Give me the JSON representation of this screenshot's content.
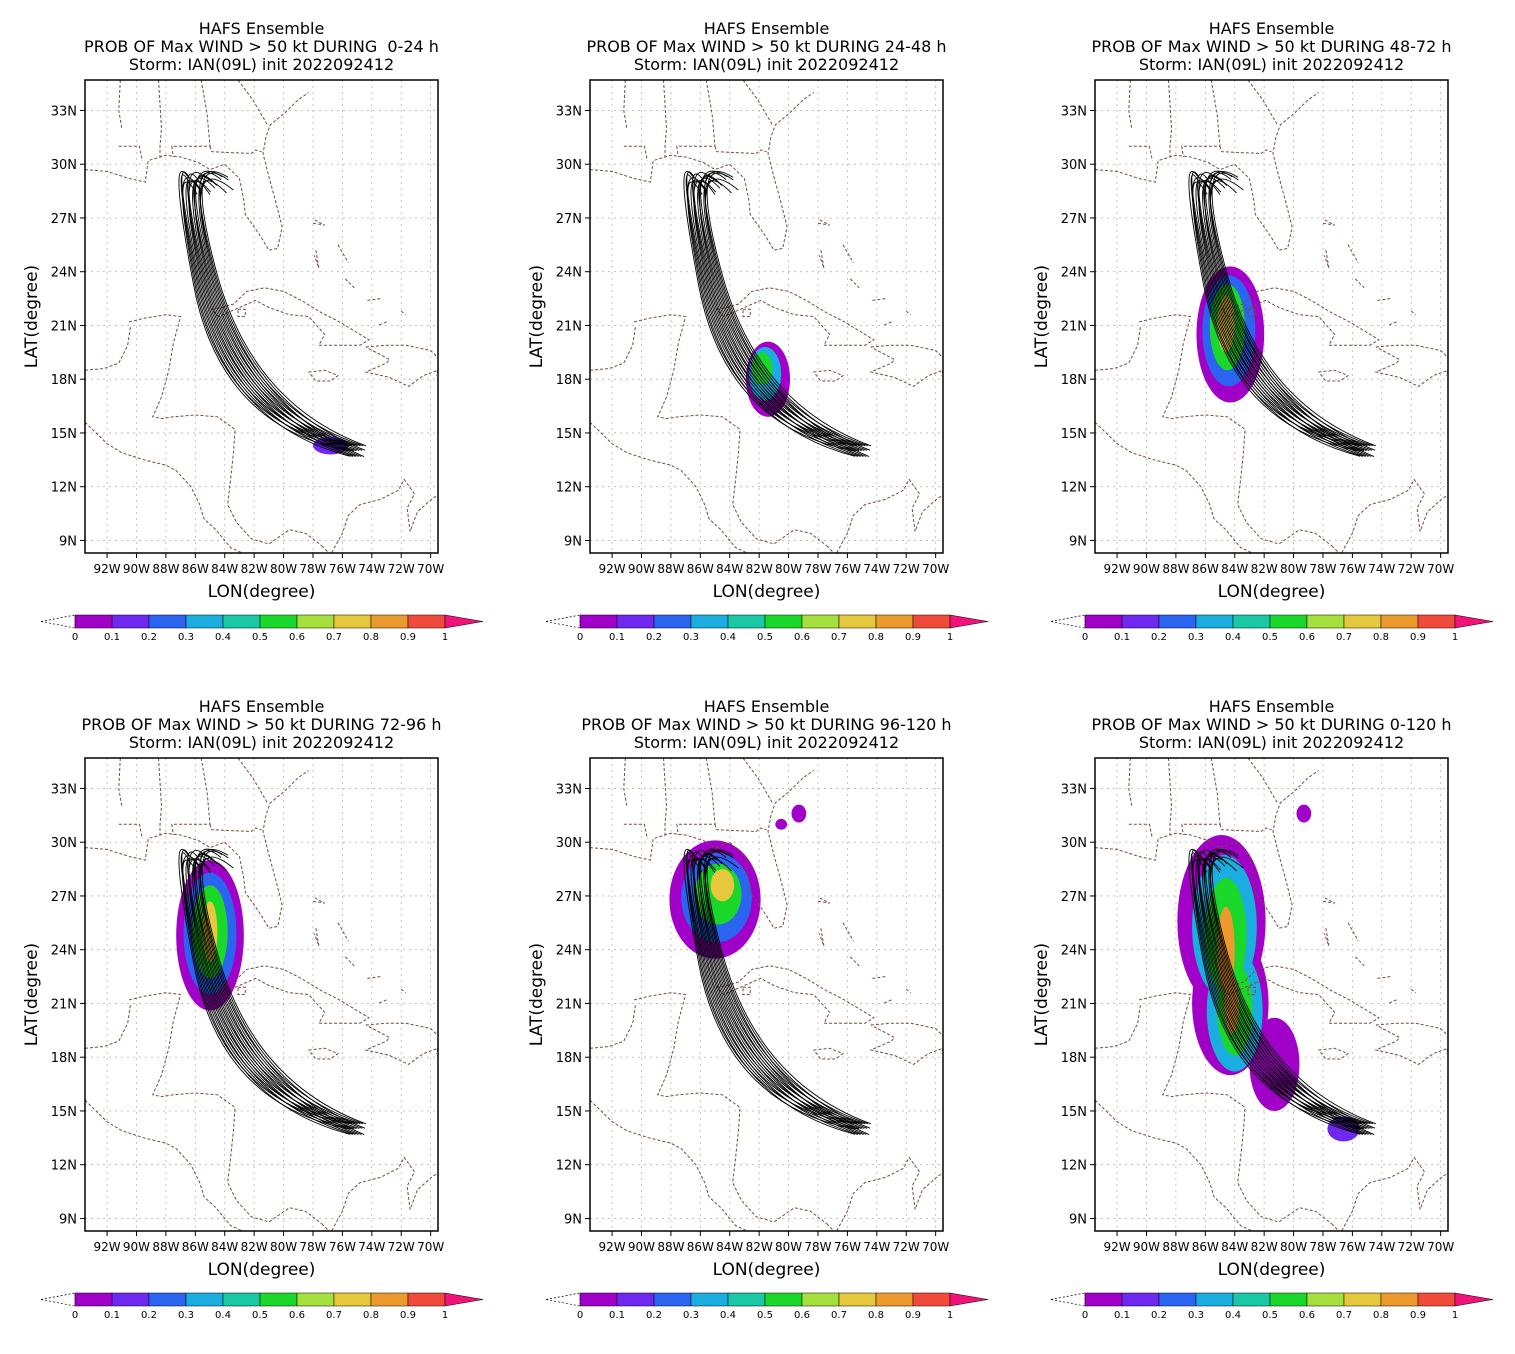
{
  "figure": {
    "panels": [
      {
        "title": "HAFS Ensemble",
        "subtitle": "PROB OF Max WIND > 50 kt DURING  0-24 h",
        "storm": "Storm: IAN(09L) init 2022092412",
        "blobs": [
          {
            "lon": -76.8,
            "lat": 14.3,
            "rlon": 1.2,
            "rlat": 0.5,
            "p": 0.12
          }
        ]
      },
      {
        "title": "HAFS Ensemble",
        "subtitle": "PROB OF Max WIND > 50 kt DURING 24-48 h",
        "storm": "Storm: IAN(09L) init 2022092412",
        "blobs": [
          {
            "lon": -81.4,
            "lat": 18.0,
            "rlon": 1.5,
            "rlat": 2.1,
            "p": 0.08
          },
          {
            "lon": -81.6,
            "lat": 18.3,
            "rlon": 1.1,
            "rlat": 1.5,
            "p": 0.3
          },
          {
            "lon": -81.8,
            "lat": 18.6,
            "rlon": 0.7,
            "rlat": 0.9,
            "p": 0.52
          }
        ]
      },
      {
        "title": "HAFS Ensemble",
        "subtitle": "PROB OF Max WIND > 50 kt DURING 48-72 h",
        "storm": "Storm: IAN(09L) init 2022092412",
        "blobs": [
          {
            "lon": -84.3,
            "lat": 20.5,
            "rlon": 2.3,
            "rlat": 3.8,
            "p": 0.08
          },
          {
            "lon": -84.4,
            "lat": 20.7,
            "rlon": 1.8,
            "rlat": 3.1,
            "p": 0.28
          },
          {
            "lon": -84.5,
            "lat": 20.9,
            "rlon": 1.2,
            "rlat": 2.4,
            "p": 0.5
          },
          {
            "lon": -84.6,
            "lat": 21.1,
            "rlon": 0.6,
            "rlat": 1.6,
            "p": 0.78
          }
        ]
      },
      {
        "title": "HAFS Ensemble",
        "subtitle": "PROB OF Max WIND > 50 kt DURING 72-96 h",
        "storm": "Storm: IAN(09L) init 2022092412",
        "blobs": [
          {
            "lon": -85.0,
            "lat": 24.8,
            "rlon": 2.3,
            "rlat": 4.2,
            "p": 0.08
          },
          {
            "lon": -85.0,
            "lat": 24.9,
            "rlon": 1.8,
            "rlat": 3.4,
            "p": 0.28
          },
          {
            "lon": -85.0,
            "lat": 25.0,
            "rlon": 1.2,
            "rlat": 2.6,
            "p": 0.5
          },
          {
            "lon": -85.0,
            "lat": 25.0,
            "rlon": 0.5,
            "rlat": 1.7,
            "p": 0.78
          }
        ]
      },
      {
        "title": "HAFS Ensemble",
        "subtitle": "PROB OF Max WIND > 50 kt DURING 96-120 h",
        "storm": "Storm: IAN(09L) init 2022092412",
        "blobs": [
          {
            "lon": -85.0,
            "lat": 26.8,
            "rlon": 3.1,
            "rlat": 3.3,
            "p": 0.08
          },
          {
            "lon": -84.9,
            "lat": 26.9,
            "rlon": 2.4,
            "rlat": 2.5,
            "p": 0.28
          },
          {
            "lon": -84.8,
            "lat": 27.1,
            "rlon": 1.6,
            "rlat": 1.7,
            "p": 0.5
          },
          {
            "lon": -84.5,
            "lat": 27.6,
            "rlon": 0.8,
            "rlat": 0.9,
            "p": 0.75
          },
          {
            "lon": -79.3,
            "lat": 31.6,
            "rlon": 0.5,
            "rlat": 0.5,
            "p": 0.08
          },
          {
            "lon": -80.5,
            "lat": 31.0,
            "rlon": 0.4,
            "rlat": 0.3,
            "p": 0.08
          }
        ]
      },
      {
        "title": "HAFS Ensemble",
        "subtitle": "PROB OF Max WIND > 50 kt DURING 0-120 h",
        "storm": "Storm: IAN(09L) init 2022092412",
        "blobs": [
          {
            "lon": -84.9,
            "lat": 25.6,
            "rlon": 3.0,
            "rlat": 4.8,
            "p": 0.08
          },
          {
            "lon": -84.3,
            "lat": 21.0,
            "rlon": 2.6,
            "rlat": 4.0,
            "p": 0.08
          },
          {
            "lon": -81.3,
            "lat": 17.6,
            "rlon": 1.7,
            "rlat": 2.6,
            "p": 0.08
          },
          {
            "lon": -84.7,
            "lat": 25.3,
            "rlon": 2.2,
            "rlat": 4.0,
            "p": 0.3
          },
          {
            "lon": -84.0,
            "lat": 20.6,
            "rlon": 1.9,
            "rlat": 3.4,
            "p": 0.3
          },
          {
            "lon": -84.6,
            "lat": 24.8,
            "rlon": 1.4,
            "rlat": 3.2,
            "p": 0.55
          },
          {
            "lon": -84.0,
            "lat": 20.7,
            "rlon": 1.2,
            "rlat": 2.6,
            "p": 0.55
          },
          {
            "lon": -84.6,
            "lat": 24.0,
            "rlon": 0.6,
            "rlat": 2.4,
            "p": 0.8
          },
          {
            "lon": -84.2,
            "lat": 20.9,
            "rlon": 0.5,
            "rlat": 1.6,
            "p": 0.8
          },
          {
            "lon": -76.6,
            "lat": 14.0,
            "rlon": 1.1,
            "rlat": 0.7,
            "p": 0.12
          },
          {
            "lon": -79.3,
            "lat": 31.6,
            "rlon": 0.5,
            "rlat": 0.5,
            "p": 0.08
          }
        ]
      }
    ],
    "x_label": "LON(degree)",
    "y_label": "LAT(degree)",
    "lon_ticks": [
      "92W",
      "90W",
      "88W",
      "86W",
      "84W",
      "82W",
      "80W",
      "78W",
      "76W",
      "74W",
      "72W",
      "70W"
    ],
    "lon_tick_values": [
      -92,
      -90,
      -88,
      -86,
      -84,
      -82,
      -80,
      -78,
      -76,
      -74,
      -72,
      -70
    ],
    "lat_ticks": [
      "9N",
      "12N",
      "15N",
      "18N",
      "21N",
      "24N",
      "27N",
      "30N",
      "33N"
    ],
    "lat_tick_values": [
      9,
      12,
      15,
      18,
      21,
      24,
      27,
      30,
      33
    ],
    "lon_range": [
      -93.5,
      -69.5
    ],
    "lat_range": [
      8.3,
      34.7
    ],
    "colorbar": {
      "labels": [
        "0",
        "0.1",
        "0.2",
        "0.3",
        "0.4",
        "0.5",
        "0.6",
        "0.7",
        "0.8",
        "0.9",
        "1"
      ],
      "colors": [
        "#a000c8",
        "#6e28f0",
        "#2c64f2",
        "#1aaee0",
        "#19c8a4",
        "#1ad82a",
        "#a6e03c",
        "#e6c83c",
        "#ec9a2e",
        "#f04a3a"
      ],
      "over_color": "#f0147a"
    },
    "track": {
      "count": 20,
      "start": {
        "lon": -75.0,
        "lat": 14.0
      },
      "control": {
        "lon": -83.2,
        "lat": 16.0
      },
      "waypoint": {
        "lon": -85.3,
        "lat": 23.5
      },
      "end": {
        "lon": -85.0,
        "lat": 28.8
      }
    },
    "colors": {
      "track": "#000000",
      "coast": "#7a4a3c",
      "grid": "#b8b8b8",
      "frame": "#000000"
    }
  }
}
